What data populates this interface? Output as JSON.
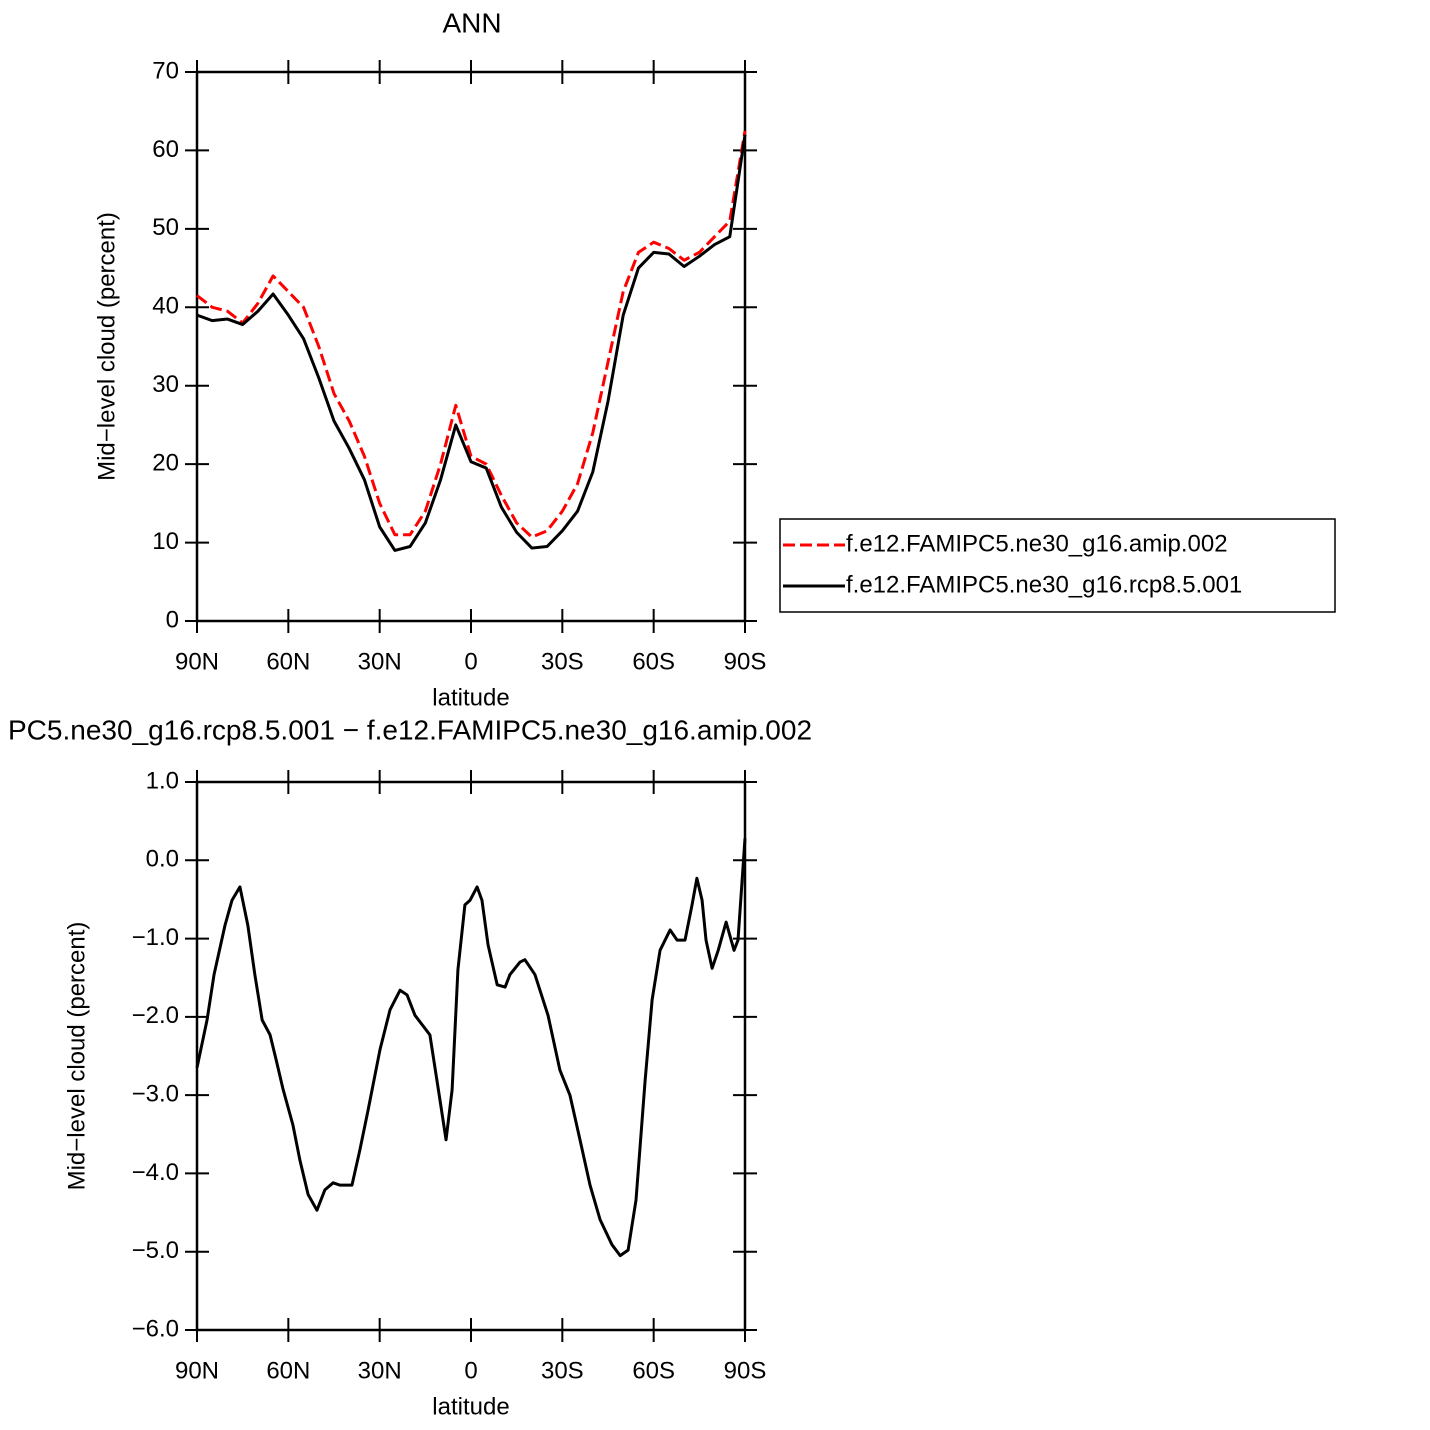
{
  "chart_data": [
    {
      "type": "line",
      "title": "ANN",
      "xlabel": "latitude",
      "ylabel": "Mid−level cloud (percent)",
      "x": [
        90,
        85,
        80,
        75,
        70,
        65,
        60,
        55,
        50,
        45,
        40,
        35,
        30,
        25,
        20,
        15,
        10,
        5,
        0,
        -5,
        -10,
        -15,
        -20,
        -25,
        -30,
        -35,
        -40,
        -45,
        -50,
        -55,
        -60,
        -65,
        -70,
        -75,
        -80,
        -85,
        -90
      ],
      "series": [
        {
          "name": "f.e12.FAMIPC5.ne30_g16.amip.002",
          "color": "#ff0000",
          "dashed": true,
          "values": [
            41.5,
            40,
            39.5,
            38,
            40.5,
            44,
            42,
            40,
            35,
            29,
            25.5,
            21,
            15,
            11,
            11,
            14,
            20,
            27.5,
            21,
            20,
            16,
            12.5,
            10.7,
            11.5,
            14,
            17.5,
            24,
            33,
            42,
            47,
            48.3,
            47.5,
            46,
            47,
            49,
            51,
            62.5
          ]
        },
        {
          "name": "f.e12.FAMIPC5.ne30_g16.rcp8.5.001",
          "color": "#000000",
          "dashed": false,
          "values": [
            39,
            38.3,
            38.5,
            37.8,
            39.5,
            41.7,
            39,
            36,
            31,
            25.5,
            22,
            18,
            12,
            9,
            9.5,
            12.5,
            18,
            25,
            20.3,
            19.5,
            14.5,
            11.3,
            9.3,
            9.5,
            11.5,
            14,
            19,
            28,
            39,
            45,
            47,
            46.8,
            45.2,
            46.5,
            48,
            49,
            62
          ]
        }
      ],
      "xlim": [
        90,
        -90
      ],
      "xticks": [
        {
          "value": 90,
          "label": "90N"
        },
        {
          "value": 60,
          "label": "60N"
        },
        {
          "value": 30,
          "label": "30N"
        },
        0,
        {
          "value": -30,
          "label": "30S"
        },
        {
          "value": -60,
          "label": "60S"
        },
        {
          "value": -90,
          "label": "90S"
        }
      ],
      "ylim": [
        0,
        70
      ],
      "yticks": [
        0,
        10,
        20,
        30,
        40,
        50,
        60,
        70
      ],
      "legend": "right"
    },
    {
      "type": "line",
      "title": "PC5.ne30_g16.rcp8.5.001 − f.e12.FAMIPC5.ne30_g16.amip.002",
      "xlabel": "latitude",
      "ylabel": "Mid−level cloud (percent)",
      "x": [
        90,
        86.7,
        84.4,
        80.8,
        78.5,
        75.9,
        73.3,
        71.0,
        68.6,
        66.0,
        64.0,
        61.7,
        58.5,
        56.2,
        53.5,
        50.6,
        48.0,
        45.3,
        43.0,
        39.1,
        36.5,
        33.8,
        29.9,
        26.6,
        23.3,
        21.0,
        18.4,
        13.5,
        10.2,
        8.2,
        6.2,
        4.3,
        2.0,
        0.3,
        -2.0,
        -3.6,
        -5.6,
        -8.6,
        -11.2,
        -12.8,
        -16.1,
        -17.7,
        -21.0,
        -25.3,
        -29.2,
        -32.5,
        -35.8,
        -39.1,
        -42.4,
        -46.3,
        -49.0,
        -51.6,
        -54.2,
        -57.2,
        -59.5,
        -62.1,
        -65.4,
        -67.7,
        -70.3,
        -72.6,
        -74.2,
        -75.9,
        -77.2,
        -79.2,
        -81.2,
        -83.8,
        -86.4,
        -87.7,
        -90
      ],
      "series": [
        {
          "color": "#000000",
          "dashed": false,
          "values": [
            -2.65,
            -2.04,
            -1.46,
            -0.83,
            -0.51,
            -0.34,
            -0.83,
            -1.46,
            -2.04,
            -2.23,
            -2.55,
            -2.93,
            -3.38,
            -3.83,
            -4.27,
            -4.47,
            -4.21,
            -4.12,
            -4.15,
            -4.15,
            -3.7,
            -3.19,
            -2.42,
            -1.91,
            -1.66,
            -1.72,
            -1.98,
            -2.23,
            -3.06,
            -3.57,
            -2.93,
            -1.4,
            -0.57,
            -0.51,
            -0.34,
            -0.51,
            -1.08,
            -1.59,
            -1.62,
            -1.46,
            -1.3,
            -1.27,
            -1.46,
            -1.98,
            -2.68,
            -3.0,
            -3.57,
            -4.15,
            -4.59,
            -4.91,
            -5.05,
            -4.98,
            -4.34,
            -2.81,
            -1.78,
            -1.15,
            -0.89,
            -1.02,
            -1.02,
            -0.57,
            -0.23,
            -0.51,
            -1.02,
            -1.38,
            -1.15,
            -0.79,
            -1.15,
            -1.02,
            0.28
          ]
        }
      ],
      "xlim": [
        90,
        -90
      ],
      "xticks": [
        {
          "value": 90,
          "label": "90N"
        },
        {
          "value": 60,
          "label": "60N"
        },
        {
          "value": 30,
          "label": "30N"
        },
        0,
        {
          "value": -30,
          "label": "30S"
        },
        {
          "value": -60,
          "label": "60S"
        },
        {
          "value": -90,
          "label": "90S"
        }
      ],
      "ylim": [
        -6,
        1
      ],
      "yticks": [
        {
          "value": -6,
          "label": "−6.0"
        },
        {
          "value": -5,
          "label": "−5.0"
        },
        {
          "value": -4,
          "label": "−4.0"
        },
        {
          "value": -3,
          "label": "−3.0"
        },
        {
          "value": -2,
          "label": "−2.0"
        },
        {
          "value": -1,
          "label": "−1.0"
        },
        {
          "value": 0,
          "label": "0.0"
        },
        {
          "value": 1,
          "label": "1.0"
        }
      ]
    }
  ]
}
